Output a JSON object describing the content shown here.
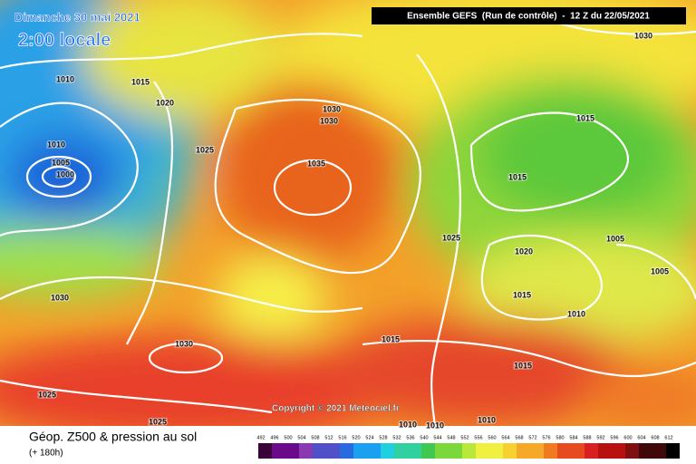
{
  "header": {
    "date": "Dimanche 30 mai 2021",
    "time": "2:00 locale",
    "model": "Ensemble GEFS  (Run de contrôle)  -  12 Z du 22/05/2021"
  },
  "copyright": "Copyright © 2021 Meteociel.fr",
  "footer": {
    "title": "Géop. Z500 & pression au sol",
    "lead": "(+ 180h)"
  },
  "colorbar": [
    492,
    496,
    500,
    504,
    508,
    512,
    516,
    520,
    524,
    528,
    532,
    536,
    540,
    544,
    548,
    552,
    556,
    560,
    564,
    568,
    572,
    576,
    580,
    584,
    588,
    592,
    596,
    600,
    604,
    608,
    612
  ],
  "isobar_labels": [
    1015,
    1010,
    1020,
    1025,
    1010,
    1005,
    1000,
    1030,
    1030,
    1035,
    1030,
    1015,
    1015,
    1025,
    1020,
    1005,
    1005,
    1015,
    1010,
    1030,
    1030,
    1015,
    1015,
    1025,
    1025,
    1010,
    1010,
    1010
  ]
}
